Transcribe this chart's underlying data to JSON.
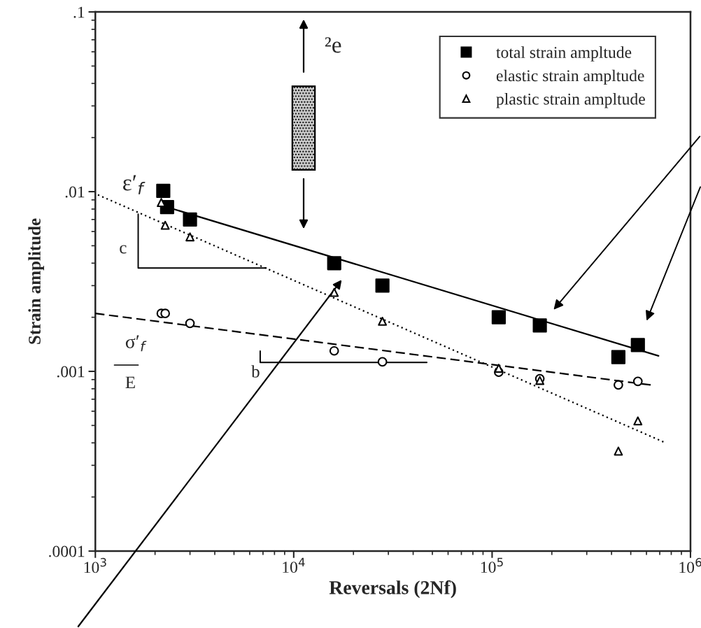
{
  "chart_data": {
    "type": "scatter",
    "xlabel": "Reversals (2Nf)",
    "ylabel": "Strain amplitude",
    "log": "xy",
    "xlim": [
      1000,
      1000000
    ],
    "ylim": [
      0.0001,
      0.1
    ],
    "xticks": [
      {
        "value": 1000,
        "label": "10$^{3}$"
      },
      {
        "value": 10000,
        "label": "10$^{4}$"
      },
      {
        "value": 100000,
        "label": "10$^{5}$"
      },
      {
        "value": 1000000,
        "label": "10$^{6}$"
      }
    ],
    "yticks": [
      {
        "value": 0.0001,
        "label": ".0001"
      },
      {
        "value": 0.001,
        "label": ".001"
      },
      {
        "value": 0.01,
        "label": ".01"
      },
      {
        "value": 0.1,
        "label": ".1"
      }
    ],
    "grid": false,
    "legend": "top right",
    "annotations": [
      "²e",
      {
        "text": "ε′$_{f}$",
        "x": 1600,
        "y": 0.0082
      },
      "c",
      "b",
      "σ′$_{f}$",
      "E"
    ],
    "series": [
      {
        "name": "total strain ampltude",
        "marker": "square",
        "color": "#000000",
        "x": [
          2200,
          2300,
          3000,
          16000,
          28000,
          108000,
          174000,
          433000,
          543000
        ],
        "values": [
          0.0101,
          0.0082,
          0.007,
          0.004,
          0.003,
          0.002,
          0.0018,
          0.0012,
          0.0014
        ]
      },
      {
        "name": "elastic strain ampltude",
        "marker": "circle",
        "color": "#000000",
        "x": [
          2150,
          2250,
          3000,
          16000,
          28000,
          108000,
          174000,
          433000,
          543000
        ],
        "values": [
          0.0021,
          0.0021,
          0.00185,
          0.0013,
          0.00113,
          0.00099,
          0.00091,
          0.00084,
          0.00088
        ]
      },
      {
        "name": "plastic strain ampltude",
        "marker": "triangle",
        "color": "#000000",
        "x": [
          2150,
          2250,
          3000,
          16000,
          28000,
          108000,
          174000,
          433000,
          543000
        ],
        "values": [
          0.0087,
          0.0065,
          0.0056,
          0.00275,
          0.0019,
          0.00104,
          0.00089,
          0.00036,
          0.00053
        ]
      },
      {
        "type": "line",
        "line_style": "solid",
        "color": "#000000",
        "x": [
          2300,
          690000
        ],
        "values": [
          0.0082,
          0.00122
        ]
      },
      {
        "type": "line",
        "line_style": "dotted",
        "color": "#000000",
        "x": [
          1030,
          750000
        ],
        "values": [
          0.0096,
          0.0004
        ]
      },
      {
        "type": "line",
        "line_style": "dashed",
        "color": "#000000",
        "x": [
          1000,
          630000
        ],
        "values": [
          0.0021,
          0.00084
        ]
      }
    ]
  }
}
